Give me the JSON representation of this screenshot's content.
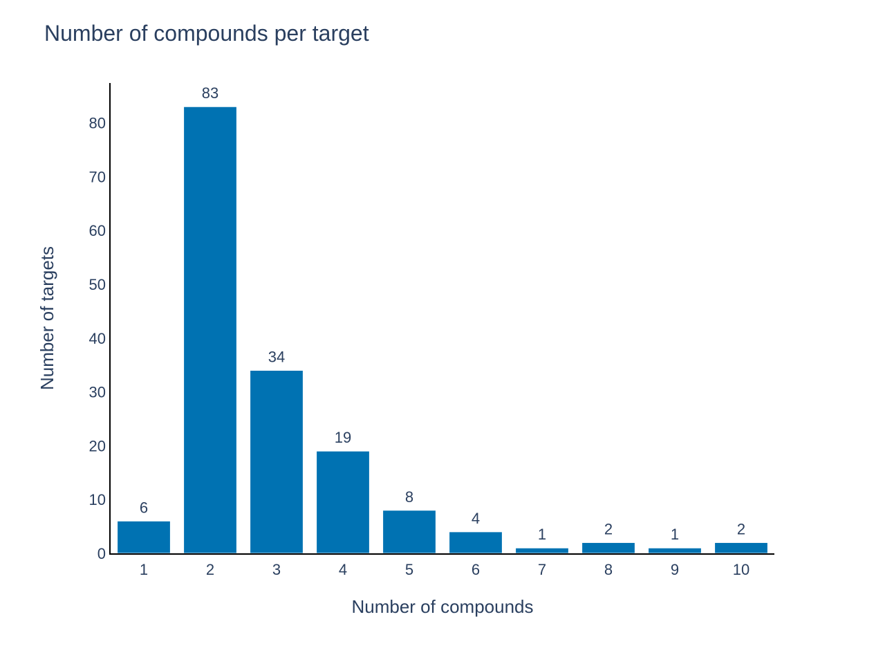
{
  "colors": {
    "bar": "#0072b2",
    "text": "#2a3f5f",
    "axis": "#000000",
    "background": "#ffffff"
  },
  "chart_data": {
    "type": "bar",
    "title": "Number of compounds per target",
    "xlabel": "Number of compounds",
    "ylabel": "Number of targets",
    "categories": [
      "1",
      "2",
      "3",
      "4",
      "5",
      "6",
      "7",
      "8",
      "9",
      "10"
    ],
    "values": [
      6,
      83,
      34,
      19,
      8,
      4,
      1,
      2,
      1,
      2
    ],
    "data_labels": [
      "6",
      "83",
      "34",
      "19",
      "8",
      "4",
      "1",
      "2",
      "1",
      "2"
    ],
    "yticks": [
      "0",
      "10",
      "20",
      "30",
      "40",
      "50",
      "60",
      "70",
      "80"
    ],
    "ylim": [
      0,
      87.4
    ],
    "grid": false,
    "legend": "none"
  }
}
